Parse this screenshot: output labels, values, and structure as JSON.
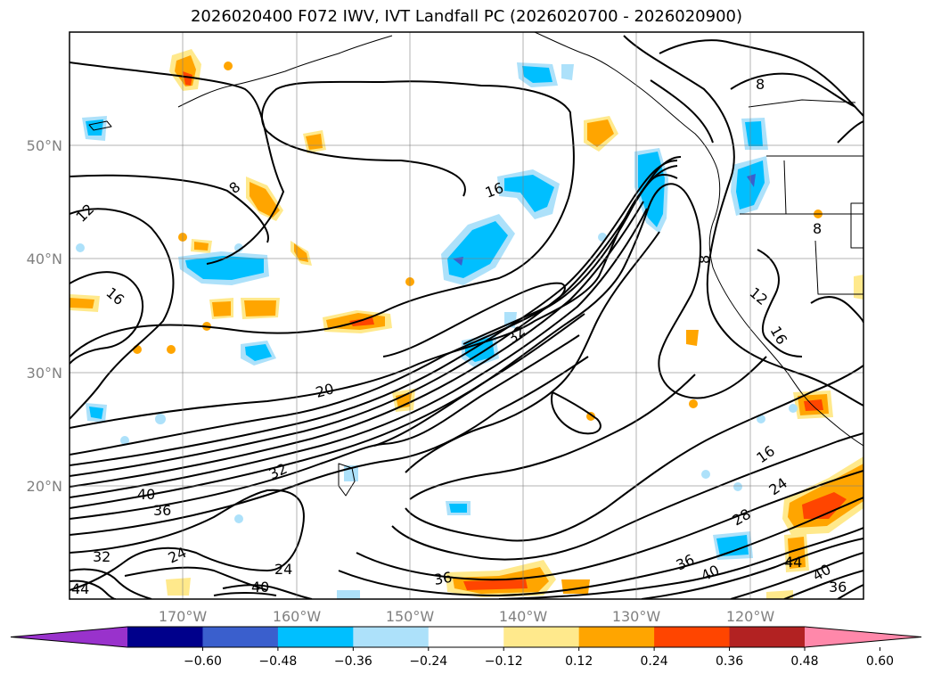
{
  "title": "2026020400 F072 IWV, IVT Landfall PC (2026020700 - 2026020900)",
  "map": {
    "extent": {
      "lon_min": -180,
      "lon_max": -110,
      "lat_min": 10,
      "lat_max": 60
    },
    "grid_lons": [
      -170,
      -160,
      -150,
      -140,
      -130,
      -120
    ],
    "grid_lats": [
      20,
      30,
      40,
      50
    ],
    "lon_labels": [
      "170°W",
      "160°W",
      "150°W",
      "140°W",
      "130°W",
      "120°W"
    ],
    "lat_labels": [
      "20°N",
      "30°N",
      "40°N",
      "50°N"
    ],
    "contour_labels": [
      "8",
      "8",
      "8",
      "8",
      "12",
      "12",
      "16",
      "16",
      "16",
      "16",
      "20",
      "24",
      "24",
      "24",
      "28",
      "32",
      "32",
      "32",
      "36",
      "36",
      "36",
      "36",
      "40",
      "40",
      "40",
      "40",
      "44",
      "44"
    ]
  },
  "colorbar": {
    "colors": [
      "#9932CC",
      "#00008B",
      "#3A5FCD",
      "#00BFFF",
      "#ADE1FA",
      "#FFFFFF",
      "#FFE98C",
      "#FFA500",
      "#FF4500",
      "#B22222",
      "#FF88AA"
    ],
    "ticks": [
      "−0.60",
      "−0.48",
      "−0.36",
      "−0.24",
      "−0.12",
      "0.12",
      "0.24",
      "0.36",
      "0.48",
      "0.60"
    ]
  }
}
